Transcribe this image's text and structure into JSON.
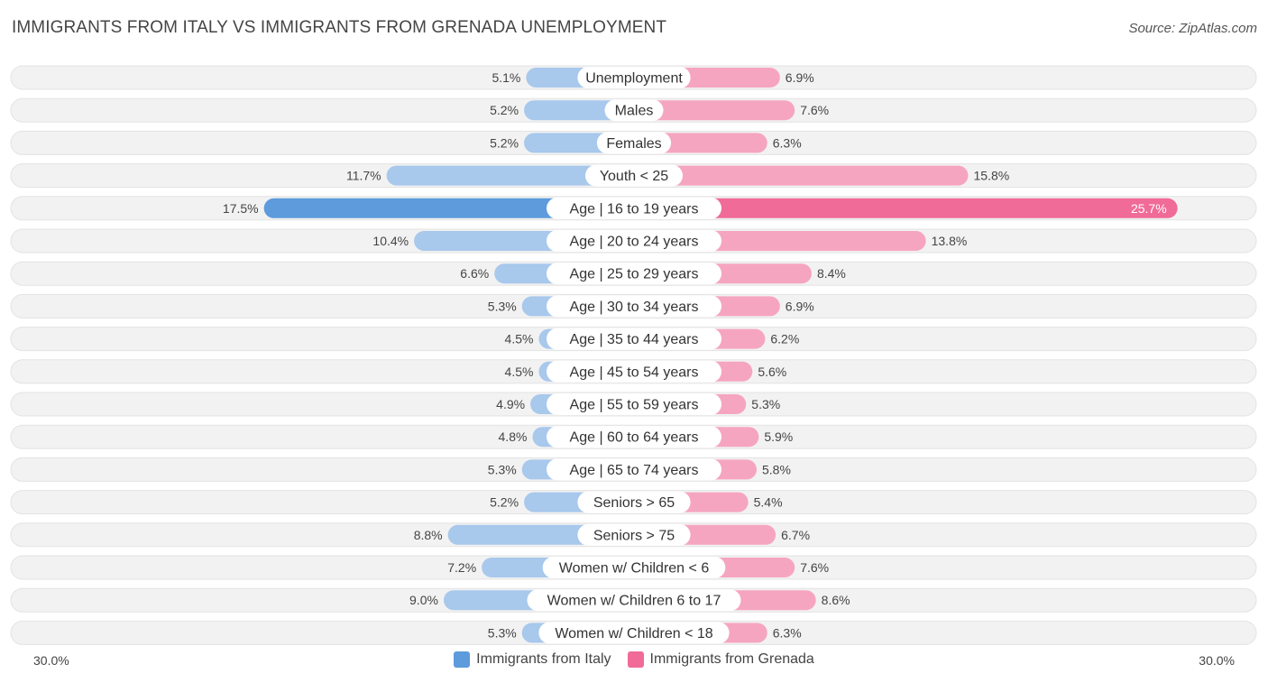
{
  "title": "IMMIGRANTS FROM ITALY VS IMMIGRANTS FROM GRENADA UNEMPLOYMENT",
  "source": "Source: ZipAtlas.com",
  "colors": {
    "italy": "#a8c8ec",
    "italy_strong": "#5d9bdc",
    "grenada": "#f6a5c0",
    "grenada_strong": "#f06b97",
    "track": "#f1f1f1"
  },
  "chart_data": {
    "type": "bar",
    "orientation": "horizontal-diverging",
    "title": "IMMIGRANTS FROM ITALY VS IMMIGRANTS FROM GRENADA UNEMPLOYMENT",
    "axis_min_label": "30.0%",
    "axis_max_label": "30.0%",
    "xlim": [
      -30,
      30
    ],
    "categories": [
      "Unemployment",
      "Males",
      "Females",
      "Youth < 25",
      "Age | 16 to 19 years",
      "Age | 20 to 24 years",
      "Age | 25 to 29 years",
      "Age | 30 to 34 years",
      "Age | 35 to 44 years",
      "Age | 45 to 54 years",
      "Age | 55 to 59 years",
      "Age | 60 to 64 years",
      "Age | 65 to 74 years",
      "Seniors > 65",
      "Seniors > 75",
      "Women w/ Children < 6",
      "Women w/ Children 6 to 17",
      "Women w/ Children < 18"
    ],
    "series": [
      {
        "name": "Immigrants from Italy",
        "values": [
          5.1,
          5.2,
          5.2,
          11.7,
          17.5,
          10.4,
          6.6,
          5.3,
          4.5,
          4.5,
          4.9,
          4.8,
          5.3,
          5.2,
          8.8,
          7.2,
          9.0,
          5.3
        ],
        "labels": [
          "5.1%",
          "5.2%",
          "5.2%",
          "11.7%",
          "17.5%",
          "10.4%",
          "6.6%",
          "5.3%",
          "4.5%",
          "4.5%",
          "4.9%",
          "4.8%",
          "5.3%",
          "5.2%",
          "8.8%",
          "7.2%",
          "9.0%",
          "5.3%"
        ]
      },
      {
        "name": "Immigrants from Grenada",
        "values": [
          6.9,
          7.6,
          6.3,
          15.8,
          25.7,
          13.8,
          8.4,
          6.9,
          6.2,
          5.6,
          5.3,
          5.9,
          5.8,
          5.4,
          6.7,
          7.6,
          8.6,
          6.3
        ],
        "labels": [
          "6.9%",
          "7.6%",
          "6.3%",
          "15.8%",
          "25.7%",
          "13.8%",
          "8.4%",
          "6.9%",
          "6.2%",
          "5.6%",
          "5.3%",
          "5.9%",
          "5.8%",
          "5.4%",
          "6.7%",
          "7.6%",
          "8.6%",
          "6.3%"
        ]
      }
    ],
    "legend": [
      "Immigrants from Italy",
      "Immigrants from Grenada"
    ],
    "legend_position": "bottom-center"
  }
}
